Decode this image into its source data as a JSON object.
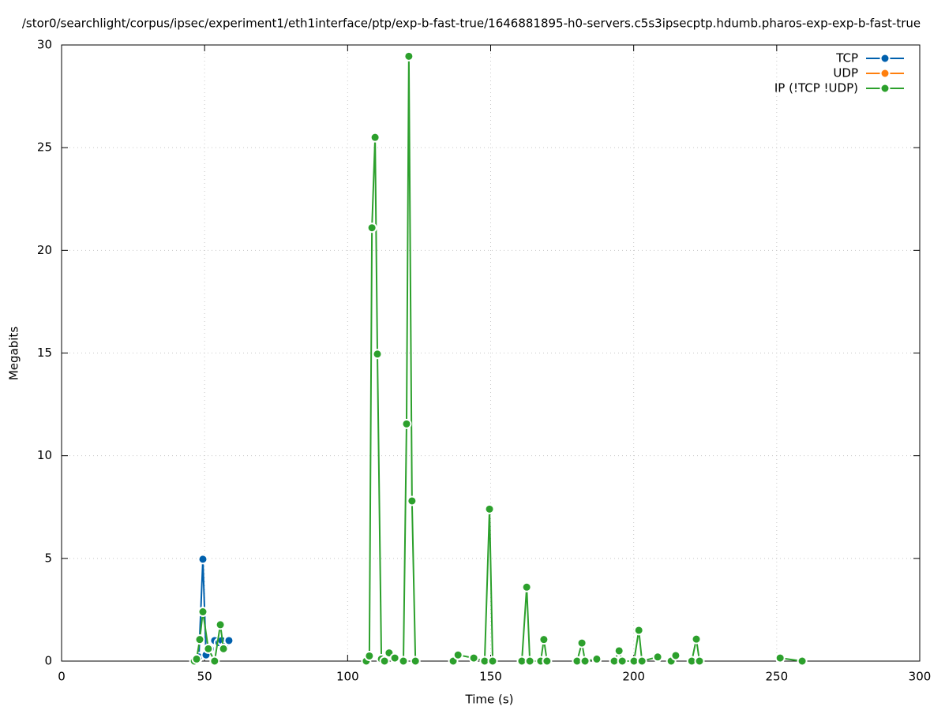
{
  "chart_data": {
    "type": "line",
    "title": "/stor0/searchlight/corpus/ipsec/experiment1/eth1interface/ptp/exp-b-fast-true/1646881895-h0-servers.c5s3ipsecptp.hdumb.pharos-exp-exp-b-fast-true",
    "x_label": "Time (s)",
    "y_label": "Megabits",
    "xlim": [
      0,
      300
    ],
    "xticks": [
      0,
      50,
      100,
      150,
      200,
      250,
      300
    ],
    "ylim": [
      0,
      30
    ],
    "yticks": [
      0,
      5,
      10,
      15,
      20,
      25,
      30
    ],
    "grid": true,
    "legend": "top-right",
    "series": [
      {
        "name": "TCP",
        "color": "#0060ad",
        "x": [
          47,
          48,
          49.4,
          50.5,
          52,
          53.5,
          55,
          56,
          57,
          58.5
        ],
        "values": [
          0,
          0.2,
          4.96,
          0.3,
          0.6,
          1.0,
          0.9,
          1.0,
          0.7,
          1.0
        ]
      },
      {
        "name": "UDP",
        "color": "#ff7f0e",
        "x": [],
        "values": []
      },
      {
        "name": "IP (!TCP  !UDP)",
        "color": "#2ca02c",
        "x": [
          46.4,
          47.2,
          48.3,
          49.4,
          51.3,
          53.5,
          55.5,
          56.6,
          null,
          106.5,
          107.6,
          108.5,
          109.6,
          110.4,
          111.8,
          112.9,
          114.5,
          116.5,
          119.5,
          120.6,
          121.4,
          122.5,
          123.7,
          null,
          136.9,
          138.6,
          144.1,
          147.9,
          149.6,
          150.7,
          null,
          160.9,
          162.6,
          163.7,
          167.5,
          168.6,
          169.7,
          null,
          180.2,
          181.9,
          183,
          187.1,
          null,
          193.2,
          194.9,
          196,
          200.1,
          201.8,
          202.9,
          208.4,
          null,
          213.1,
          214.7,
          null,
          220.3,
          221.9,
          223,
          null,
          251.2,
          258.9
        ],
        "values": [
          0,
          0.1,
          1.05,
          2.4,
          0.6,
          0,
          1.77,
          0.6,
          null,
          0,
          0.25,
          21.1,
          25.5,
          14.95,
          0.1,
          0,
          0.4,
          0.15,
          0,
          11.55,
          29.45,
          7.8,
          0,
          null,
          0,
          0.3,
          0.15,
          0,
          7.4,
          0,
          null,
          0,
          3.6,
          0,
          0,
          1.05,
          0,
          null,
          0,
          0.88,
          0,
          0.1,
          null,
          0,
          0.5,
          0,
          0,
          1.5,
          0,
          0.2,
          null,
          0,
          0.27,
          null,
          0,
          1.07,
          0,
          null,
          0.15,
          0
        ]
      }
    ]
  }
}
